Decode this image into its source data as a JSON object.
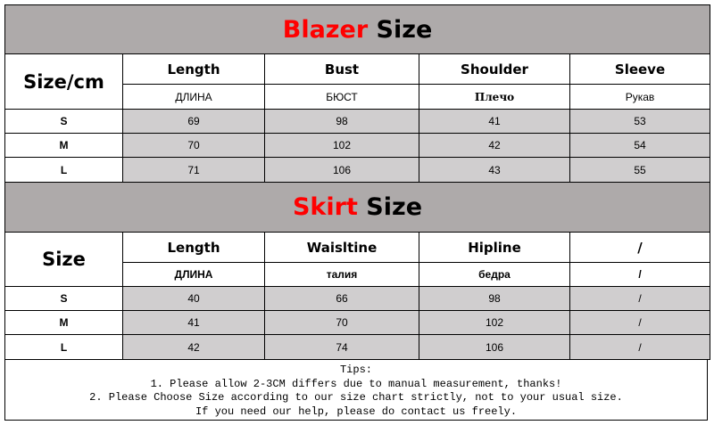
{
  "blazer": {
    "title_colored": "Blazer",
    "title_rest": "Size",
    "corner": "Size/cm",
    "columns": [
      {
        "label": "Length",
        "sub": "ДЛИНА"
      },
      {
        "label": "Bust",
        "sub": "БЮСТ"
      },
      {
        "label": "Shoulder",
        "sub": "Плечо"
      },
      {
        "label": "Sleeve",
        "sub": "Рукав"
      }
    ],
    "rows": [
      {
        "size": "S",
        "values": [
          "69",
          "98",
          "41",
          "53"
        ]
      },
      {
        "size": "M",
        "values": [
          "70",
          "102",
          "42",
          "54"
        ]
      },
      {
        "size": "L",
        "values": [
          "71",
          "106",
          "43",
          "55"
        ]
      }
    ]
  },
  "skirt": {
    "title_colored": "Skirt",
    "title_rest": "Size",
    "corner": "Size",
    "columns": [
      {
        "label": "Length",
        "sub": "ДЛИНА"
      },
      {
        "label": "Waisltine",
        "sub": "талия"
      },
      {
        "label": "Hipline",
        "sub": "бедра"
      },
      {
        "label": "/",
        "sub": "/"
      }
    ],
    "rows": [
      {
        "size": "S",
        "values": [
          "40",
          "66",
          "98",
          "/"
        ]
      },
      {
        "size": "M",
        "values": [
          "41",
          "70",
          "102",
          "/"
        ]
      },
      {
        "size": "L",
        "values": [
          "42",
          "74",
          "106",
          "/"
        ]
      }
    ]
  },
  "tips": [
    "Tips:",
    "1. Please allow 2-3CM differs due to manual measurement, thanks!",
    "2. Please Choose Size according to our size chart strictly, not to your usual size.",
    "If you need our help, please do contact us freely."
  ],
  "colors": {
    "title_accent": "#ff0000",
    "title_bg": "#aeaaaa",
    "cell_bg": "#d0cecf"
  }
}
